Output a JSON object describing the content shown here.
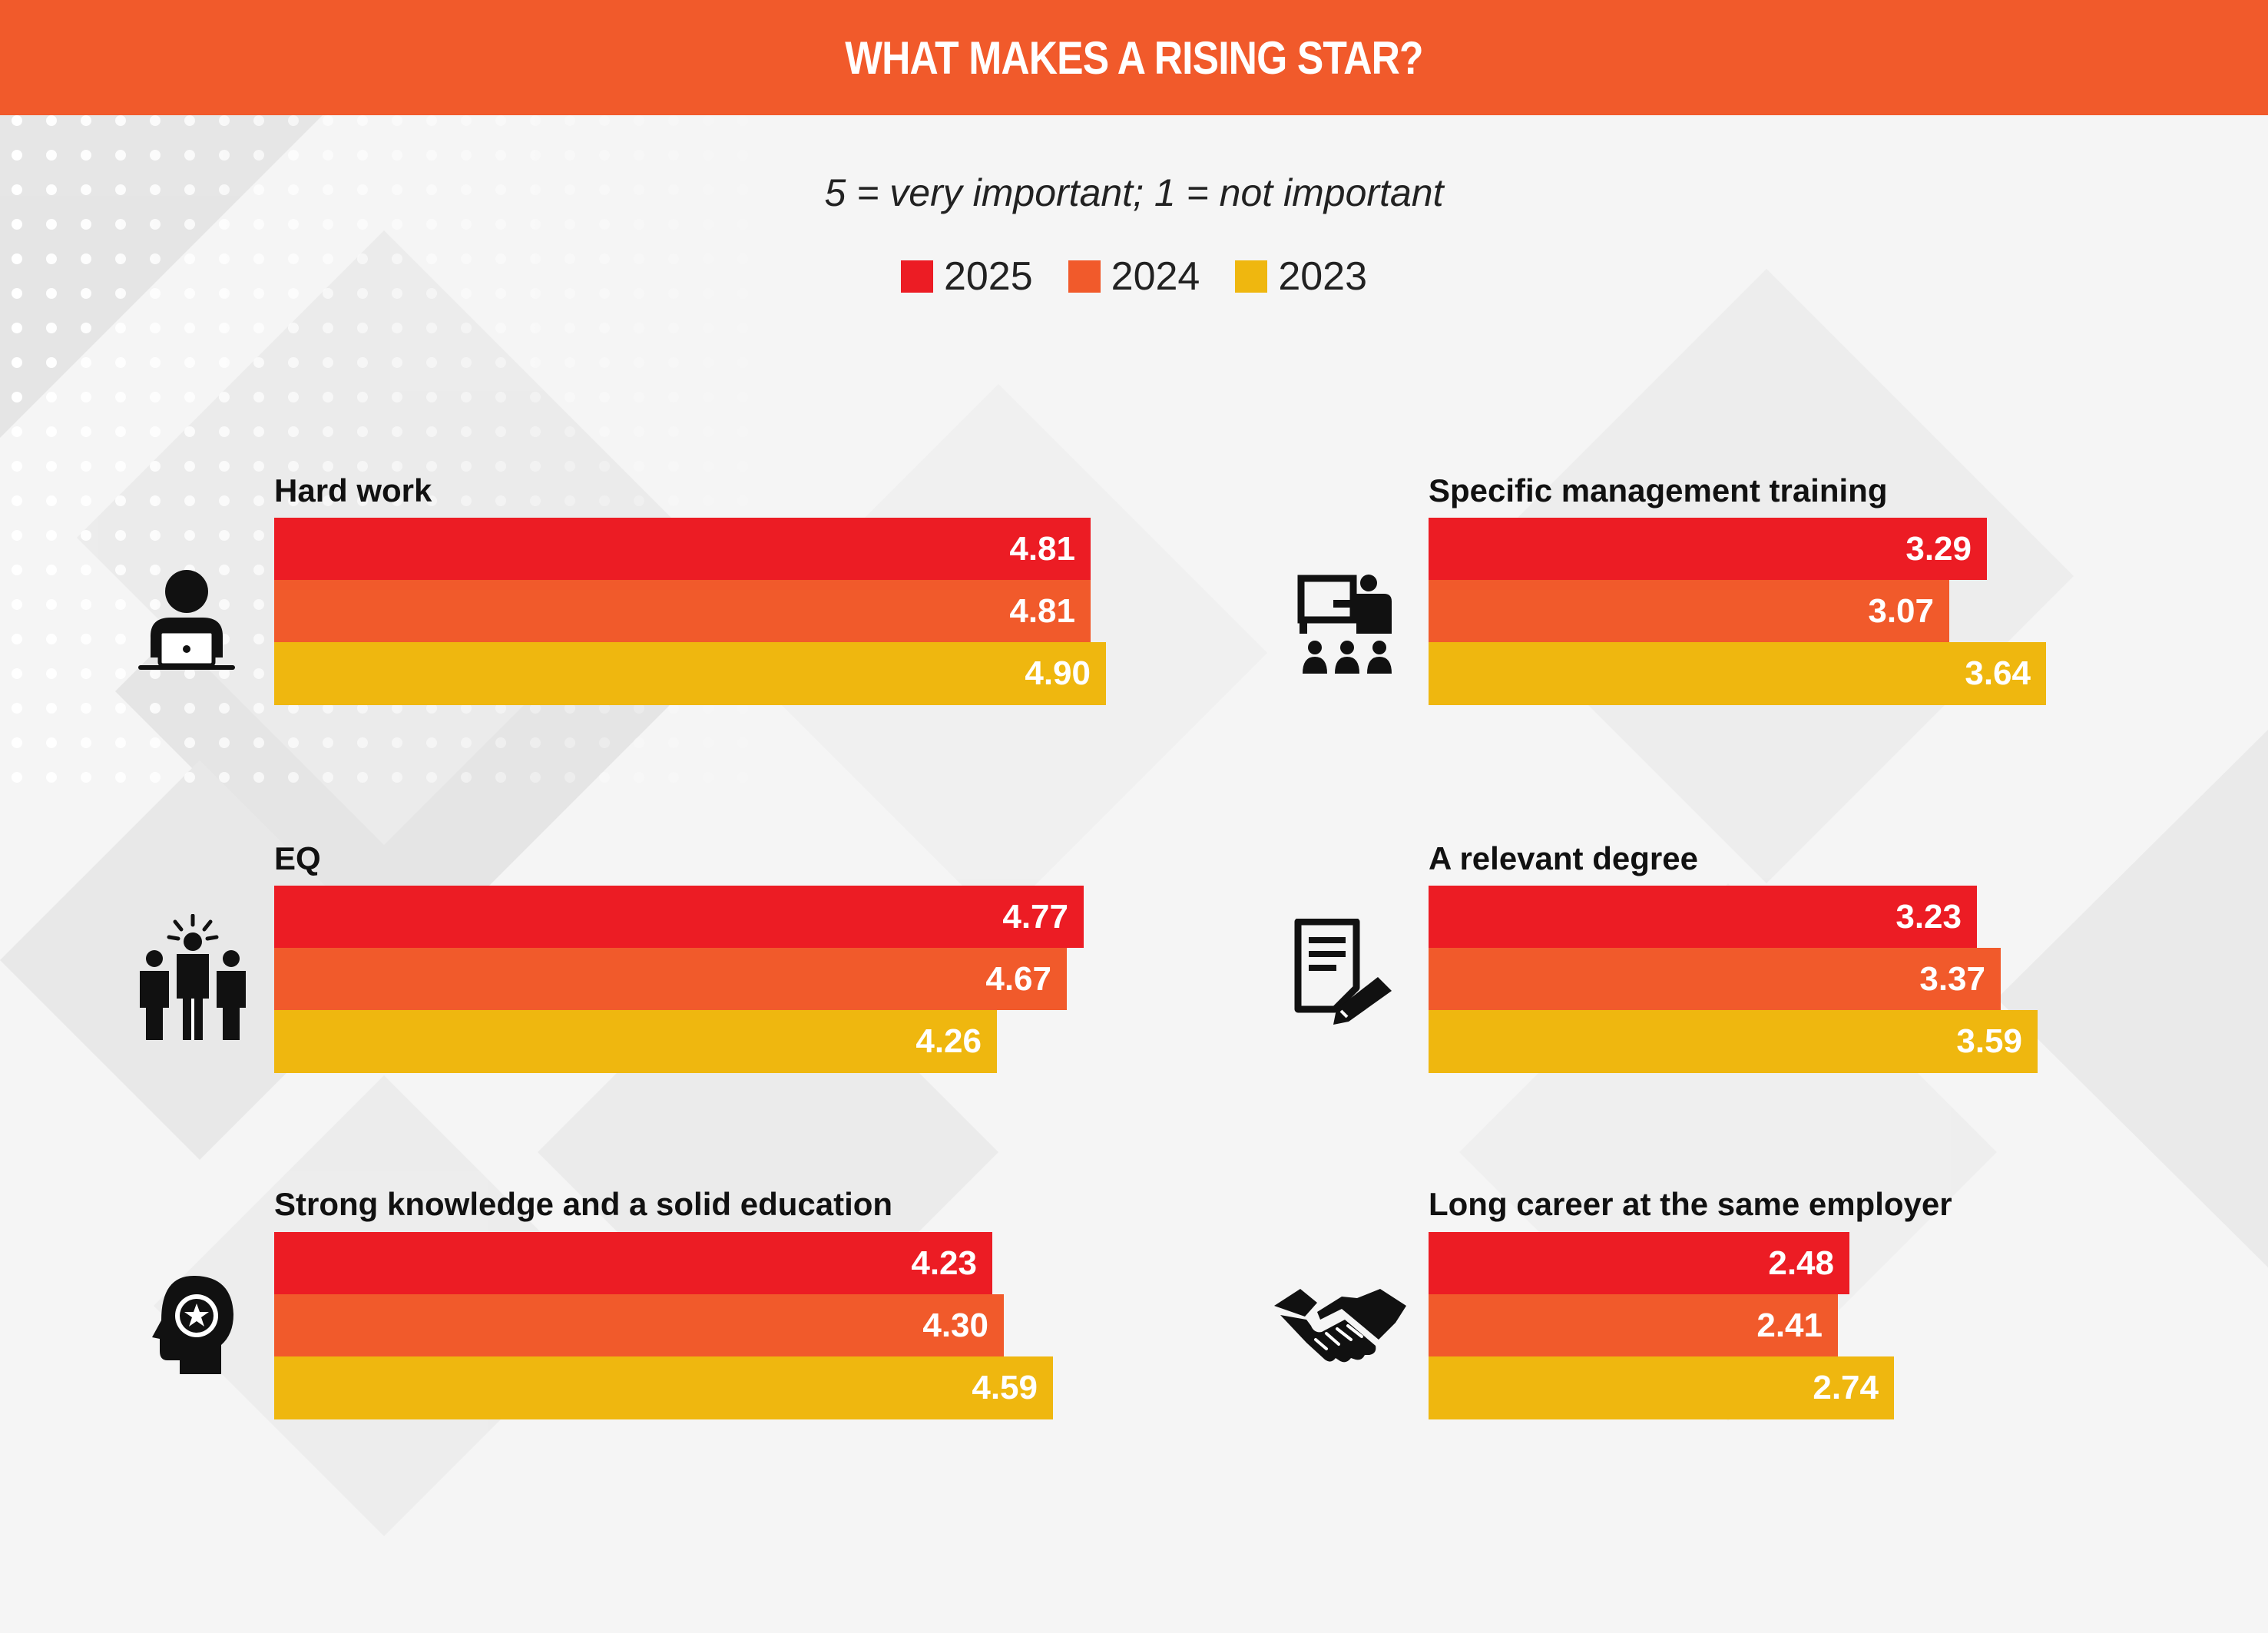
{
  "header": {
    "title": "WHAT MAKES A RISING STAR?"
  },
  "subtitle": "5 = very important; 1 = not important",
  "colors": {
    "y2025": "#ec1c24",
    "y2024": "#f15a2b",
    "y2023": "#efb70f",
    "header": "#f15a2b"
  },
  "legend": [
    {
      "label": "2025",
      "color": "#ec1c24"
    },
    {
      "label": "2024",
      "color": "#f15a2b"
    },
    {
      "label": "2023",
      "color": "#efb70f"
    }
  ],
  "icons": [
    "person-laptop-icon",
    "presenter-audience-icon",
    "team-people-icon",
    "document-pen-icon",
    "head-star-icon",
    "handshake-icon"
  ],
  "chart_data": {
    "type": "bar",
    "orientation": "horizontal",
    "series_order": [
      "2025",
      "2024",
      "2023"
    ],
    "xlim": [
      0,
      5
    ],
    "groups": [
      {
        "category": "Hard work",
        "values": {
          "2025": 4.81,
          "2024": 4.81,
          "2023": 4.9
        },
        "labels": [
          "4.81",
          "4.81",
          "4.90"
        ]
      },
      {
        "category": "Specific management training",
        "values": {
          "2025": 3.29,
          "2024": 3.07,
          "2023": 3.64
        },
        "labels": [
          "3.29",
          "3.07",
          "3.64"
        ]
      },
      {
        "category": "EQ",
        "values": {
          "2025": 4.77,
          "2024": 4.67,
          "2023": 4.26
        },
        "labels": [
          "4.77",
          "4.67",
          "4.26"
        ]
      },
      {
        "category": "A relevant degree",
        "values": {
          "2025": 3.23,
          "2024": 3.37,
          "2023": 3.59
        },
        "labels": [
          "3.23",
          "3.37",
          "3.59"
        ]
      },
      {
        "category": "Strong knowledge and a solid education",
        "values": {
          "2025": 4.23,
          "2024": 4.3,
          "2023": 4.59
        },
        "labels": [
          "4.23",
          "4.30",
          "4.59"
        ]
      },
      {
        "category": "Long career at the same employer",
        "values": {
          "2025": 2.48,
          "2024": 2.41,
          "2023": 2.74
        },
        "labels": [
          "2.48",
          "2.41",
          "2.74"
        ]
      }
    ]
  }
}
